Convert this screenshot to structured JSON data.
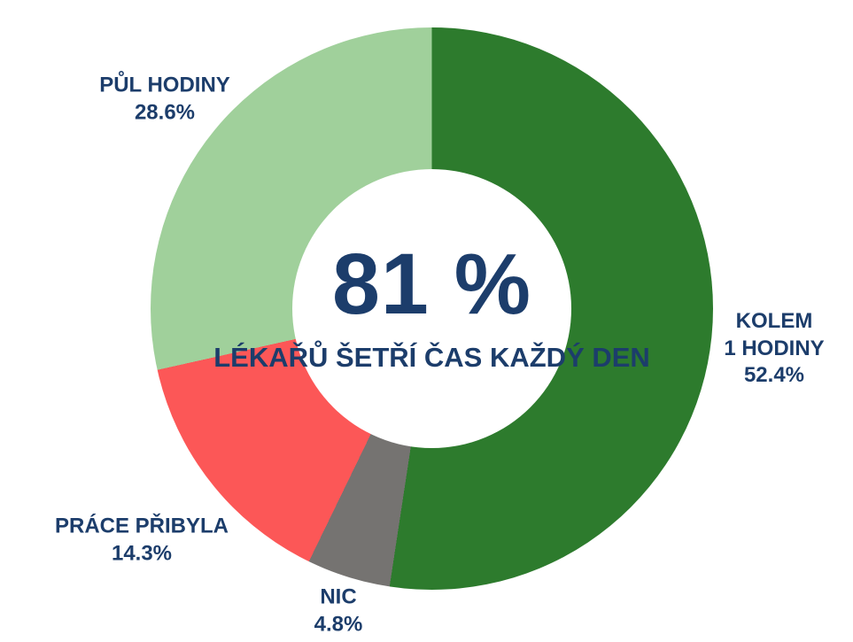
{
  "chart_data": {
    "type": "pie",
    "variant": "donut",
    "direction": "clockwise",
    "start_angle_deg": 0,
    "hole_ratio": 0.49,
    "legend": "none",
    "background": "#ffffff",
    "text_color": "#1c3d6b",
    "center": {
      "headline": "81 %",
      "subtitle_line1": "LÉKAŘŮ ŠETŘÍ ČAS",
      "subtitle_line2": "KAŽDÝ DEN"
    },
    "segments": [
      {
        "label": "KOLEM 1 HODINY",
        "label_line1": "KOLEM",
        "label_line2": "1 HODINY",
        "value": 52.4,
        "pct_text": "52.4%",
        "color": "#2d7b2d"
      },
      {
        "label": "NIC",
        "label_line1": "NIC",
        "value": 4.8,
        "pct_text": "4.8%",
        "color": "#757371"
      },
      {
        "label": "PRÁCE PŘIBYLA",
        "label_line1": "PRÁCE PŘIBYLA",
        "value": 14.3,
        "pct_text": "14.3%",
        "color": "#fc5757"
      },
      {
        "label": "PŮL HODINY",
        "label_line1": "PŮL HODINY",
        "value": 28.6,
        "pct_text": "28.6%",
        "color": "#a0d09b"
      }
    ]
  }
}
